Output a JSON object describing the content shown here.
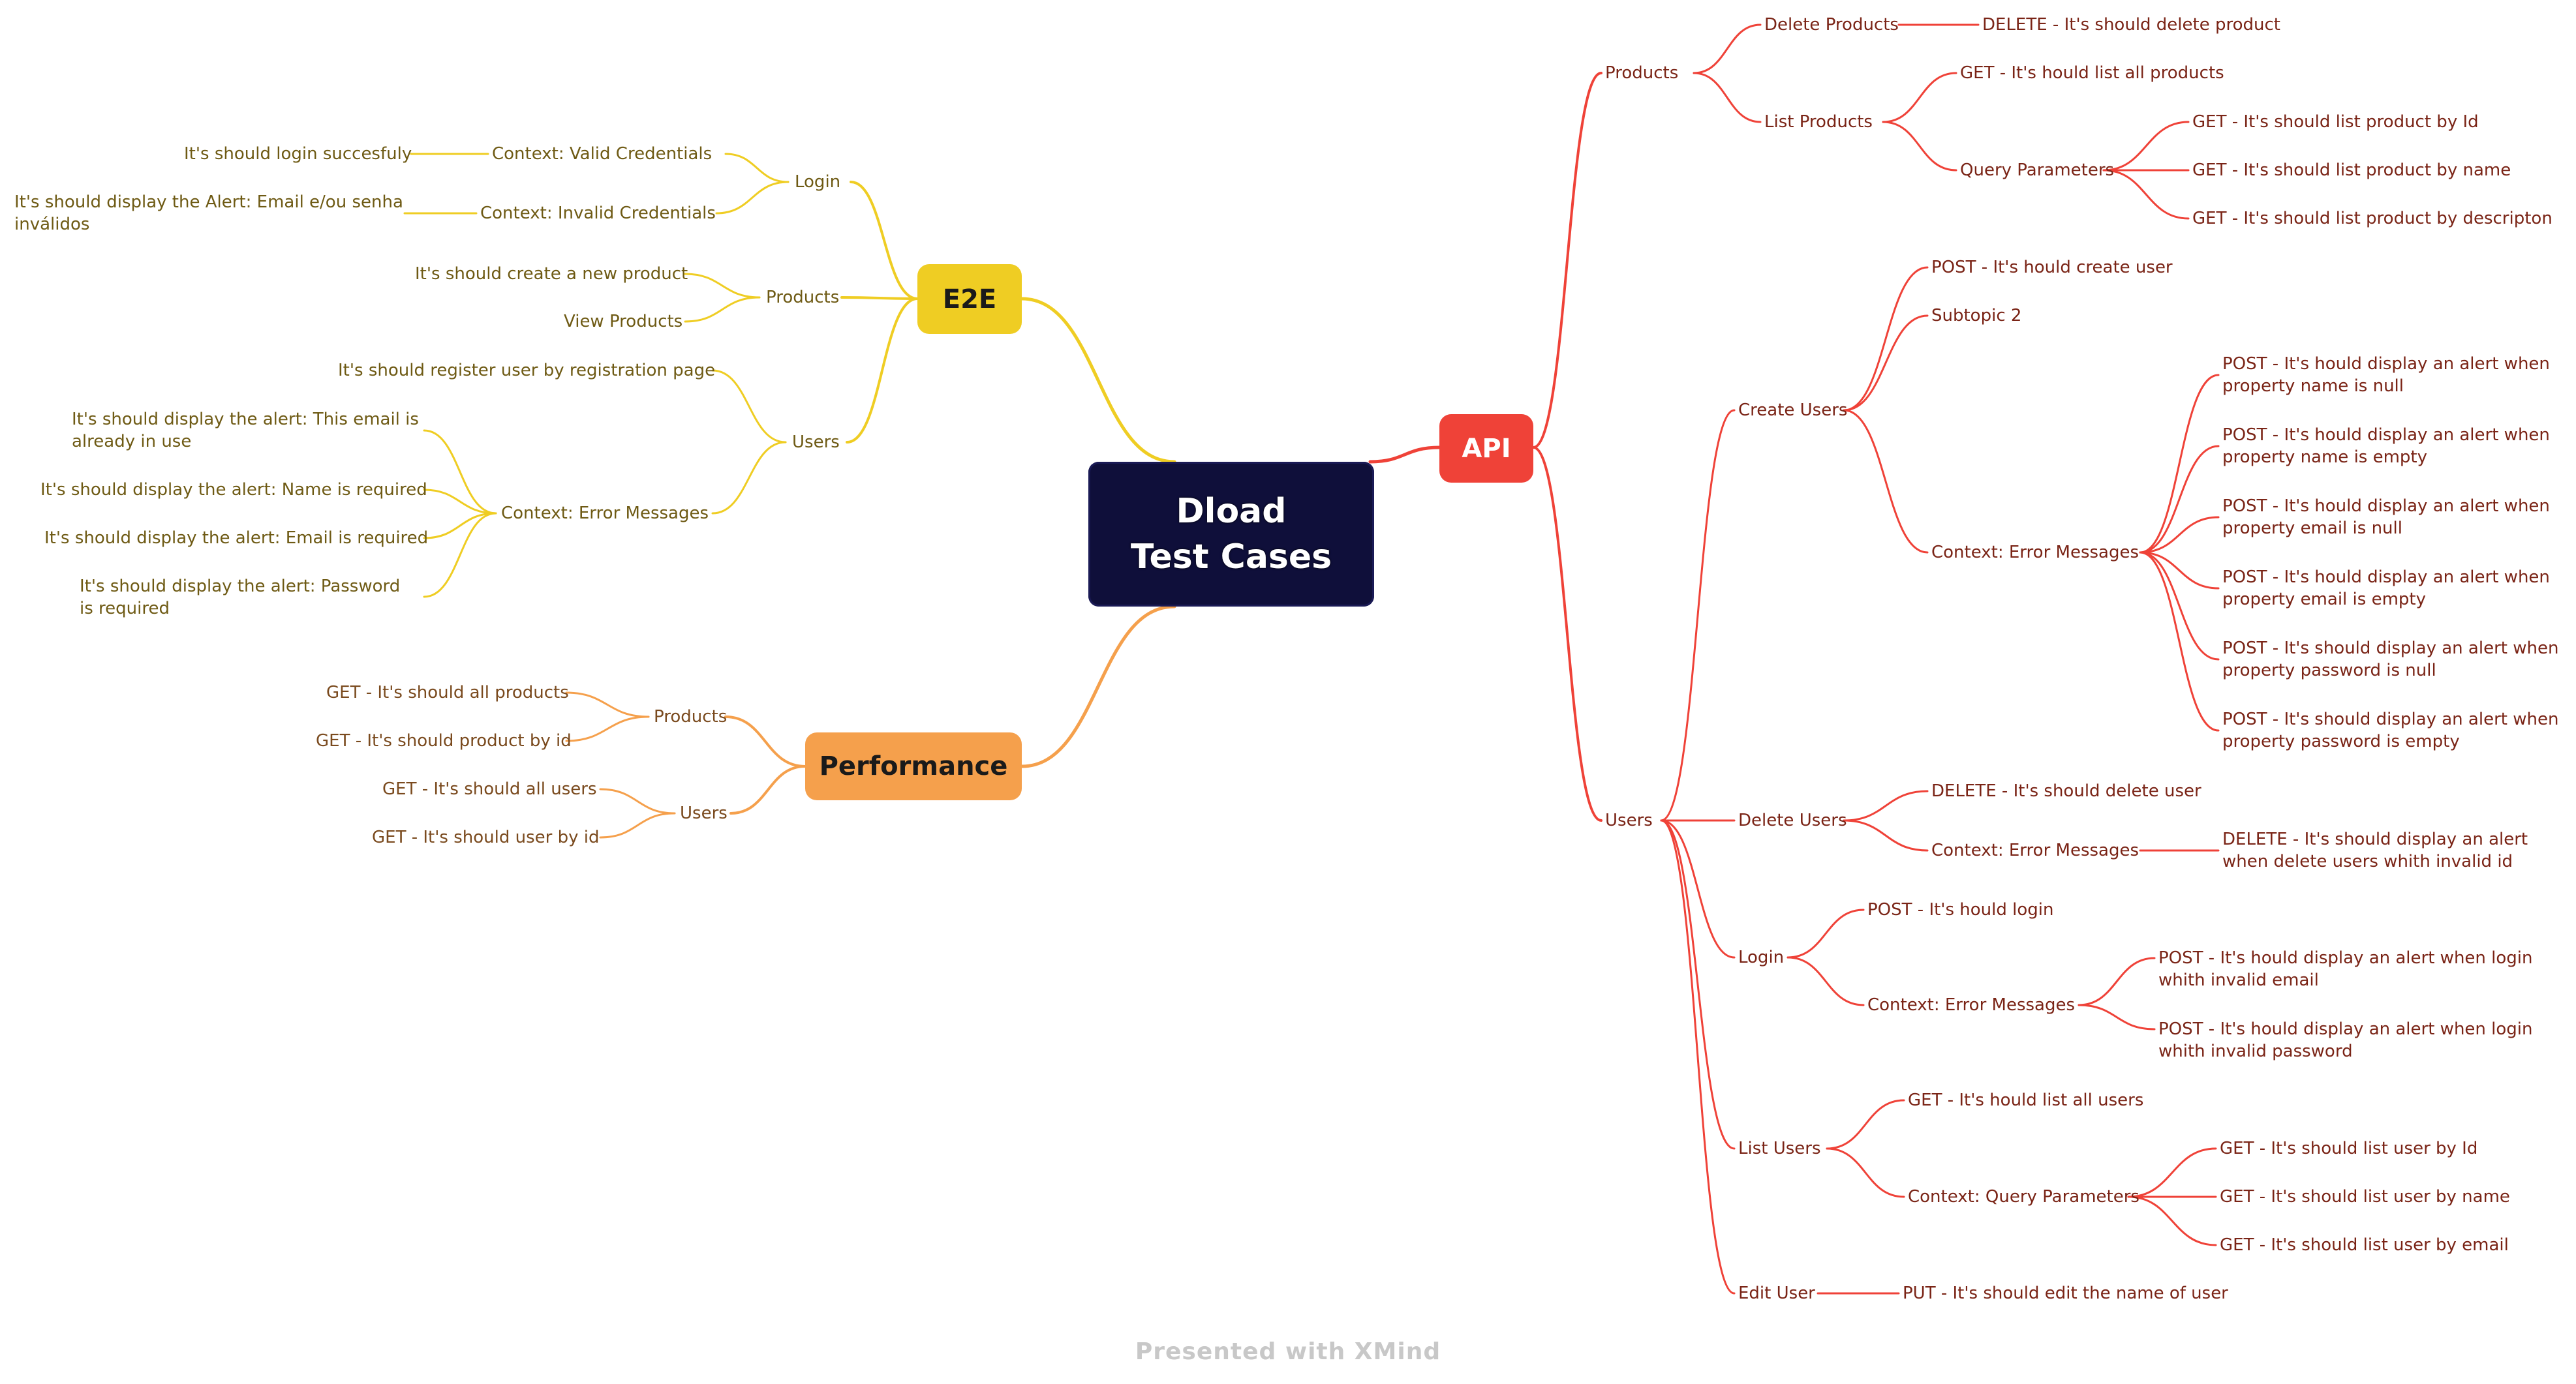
{
  "colors": {
    "e2e": "#efcd23",
    "api": "#ef4238",
    "performance": "#f5a04c",
    "central": "#0f0f3a"
  },
  "central": {
    "title": "Dload\nTest Cases"
  },
  "e2e": {
    "label": "E2E",
    "login": {
      "label": "Login",
      "valid_context": "Context: Valid Credentials",
      "valid_case": "It's should login succesfuly",
      "invalid_context": "Context: Invalid Credentials",
      "invalid_case": "It's should display the Alert: Email e/ou senha inválidos"
    },
    "products": {
      "label": "Products",
      "create_case": "It's should create a new product",
      "view_case": "View Products"
    },
    "users": {
      "label": "Users",
      "register_case": "It's should register user by registration page",
      "error_context": "Context: Error Messages",
      "errors": [
        "It's should display the alert: This email is already in use",
        "It's should display the alert: Name is required",
        "It's should display the alert: Email is required",
        "It's should display the alert: Password is required"
      ]
    }
  },
  "performance": {
    "label": "Performance",
    "products": {
      "label": "Products",
      "cases": [
        "GET - It's should all products",
        "GET - It's should product by id"
      ]
    },
    "users": {
      "label": "Users",
      "cases": [
        "GET - It's should all users",
        "GET - It's should user by id"
      ]
    }
  },
  "api": {
    "label": "API",
    "products": {
      "label": "Products",
      "delete": {
        "label": "Delete Products",
        "case": "DELETE - It's should delete product"
      },
      "list": {
        "label": "List Products",
        "all_case": "GET - It's hould list all products",
        "query": {
          "label": "Query Parameters",
          "cases": [
            "GET - It's should list product by Id",
            "GET - It's should list product by name",
            "GET - It's should list product by descripton"
          ]
        }
      }
    },
    "users": {
      "label": "Users",
      "create": {
        "label": "Create Users",
        "post_case": "POST - It's hould create user",
        "subtopic": "Subtopic 2",
        "error_context": "Context: Error Messages",
        "errors": [
          "POST - It's hould display an alert when property name is null",
          "POST - It's hould display an alert when property name is empty",
          "POST - It's hould display an alert when property email is null",
          "POST - It's hould display an alert when property email is empty",
          "POST - It's should display an alert when property password is null",
          "POST - It's should display an alert when property password is empty"
        ]
      },
      "delete": {
        "label": "Delete Users",
        "case": "DELETE - It's should delete user",
        "error_context": "Context: Error Messages",
        "error_case": "DELETE - It's should display an alert when delete users whith invalid id"
      },
      "login": {
        "label": "Login",
        "case": "POST - It's hould login",
        "error_context": "Context: Error Messages",
        "errors": [
          "POST - It's hould display an alert when login whith invalid email",
          "POST - It's hould display an alert when login whith invalid password"
        ]
      },
      "list": {
        "label": "List Users",
        "all_case": "GET - It's hould list all users",
        "query": {
          "label": "Context: Query Parameters",
          "cases": [
            "GET - It's should list user by Id",
            "GET - It's should list user by name",
            "GET - It's should list user by email"
          ]
        }
      },
      "edit": {
        "label": "Edit User",
        "case": "PUT - It's should edit the name of user"
      }
    }
  },
  "footer": "Presented with XMind"
}
